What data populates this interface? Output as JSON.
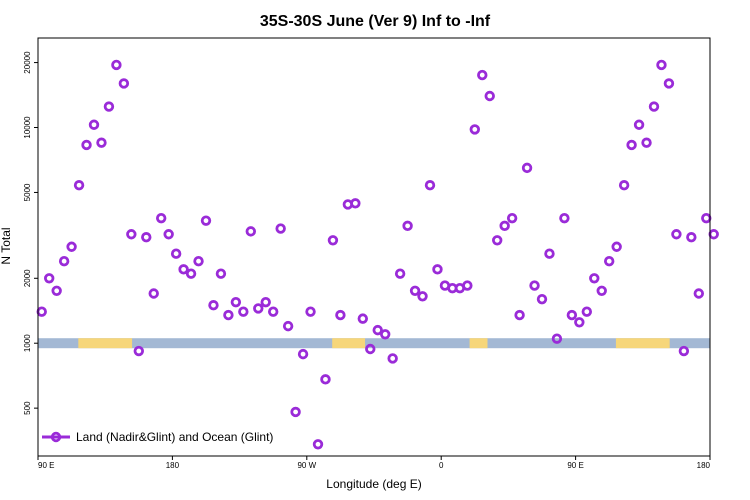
{
  "chart_data": {
    "type": "scatter",
    "title": "35S-30S June (Ver 9)   Inf to -Inf",
    "xlabel": "Longitude (deg E)",
    "ylabel": "N Total",
    "y_scale": "log",
    "ylim": [
      300,
      26000
    ],
    "xlim": [
      0,
      450
    ],
    "x_ticks": [
      {
        "value": 0,
        "label": "90 E"
      },
      {
        "value": 90,
        "label": "180"
      },
      {
        "value": 180,
        "label": "90 W"
      },
      {
        "value": 270,
        "label": "0"
      },
      {
        "value": 360,
        "label": "90 E"
      },
      {
        "value": 450,
        "label": "180"
      }
    ],
    "y_ticks": [
      {
        "value": 500,
        "label": "500"
      },
      {
        "value": 1000,
        "label": "1000"
      },
      {
        "value": 2000,
        "label": "2000"
      },
      {
        "value": 5000,
        "label": "5000"
      },
      {
        "value": 10000,
        "label": "10000"
      },
      {
        "value": 20000,
        "label": "20000"
      }
    ],
    "legend": {
      "label": "Land (Nadir&Glint) and Ocean (Glint)",
      "position": "bottom-left"
    },
    "colors": {
      "series": "#9a2bd8",
      "ocean": "#a3b8d4",
      "land": "#f6d67a"
    },
    "land_strip": {
      "y_value": 1000,
      "land_intervals": [
        [
          27,
          63
        ],
        [
          197,
          219
        ],
        [
          289,
          301
        ],
        [
          387,
          423
        ]
      ]
    },
    "series": [
      {
        "name": "Land (Nadir&Glint) and Ocean (Glint)",
        "points": [
          [
            2.5,
            1400
          ],
          [
            7.5,
            2000
          ],
          [
            12.5,
            1750
          ],
          [
            17.5,
            2400
          ],
          [
            22.5,
            2800
          ],
          [
            27.5,
            5400
          ],
          [
            32.5,
            8300
          ],
          [
            37.5,
            10300
          ],
          [
            42.5,
            8500
          ],
          [
            47.5,
            12500
          ],
          [
            52.5,
            19500
          ],
          [
            57.5,
            16000
          ],
          [
            62.5,
            3200
          ],
          [
            67.5,
            920
          ],
          [
            72.5,
            3100
          ],
          [
            77.5,
            1700
          ],
          [
            82.5,
            3800
          ],
          [
            87.5,
            3200
          ],
          [
            92.5,
            2600
          ],
          [
            97.5,
            2200
          ],
          [
            102.5,
            2100
          ],
          [
            107.5,
            2400
          ],
          [
            112.5,
            3700
          ],
          [
            117.5,
            1500
          ],
          [
            122.5,
            2100
          ],
          [
            127.5,
            1350
          ],
          [
            132.5,
            1550
          ],
          [
            137.5,
            1400
          ],
          [
            142.5,
            3300
          ],
          [
            147.5,
            1450
          ],
          [
            152.5,
            1550
          ],
          [
            157.5,
            1400
          ],
          [
            162.5,
            3400
          ],
          [
            167.5,
            1200
          ],
          [
            172.5,
            480
          ],
          [
            177.5,
            890
          ],
          [
            182.5,
            1400
          ],
          [
            187.5,
            340
          ],
          [
            192.5,
            680
          ],
          [
            197.5,
            3000
          ],
          [
            202.5,
            1350
          ],
          [
            207.5,
            4400
          ],
          [
            212.5,
            4450
          ],
          [
            217.5,
            1300
          ],
          [
            222.5,
            940
          ],
          [
            227.5,
            1150
          ],
          [
            232.5,
            1100
          ],
          [
            237.5,
            850
          ],
          [
            242.5,
            2100
          ],
          [
            247.5,
            3500
          ],
          [
            252.5,
            1750
          ],
          [
            257.5,
            1650
          ],
          [
            262.5,
            5400
          ],
          [
            267.5,
            2200
          ],
          [
            272.5,
            1850
          ],
          [
            277.5,
            1800
          ],
          [
            282.5,
            1800
          ],
          [
            287.5,
            1850
          ],
          [
            292.5,
            9800
          ],
          [
            297.5,
            17500
          ],
          [
            302.5,
            14000
          ],
          [
            307.5,
            3000
          ],
          [
            312.5,
            3500
          ],
          [
            317.5,
            3800
          ],
          [
            322.5,
            1350
          ],
          [
            327.5,
            6500
          ],
          [
            332.5,
            1850
          ],
          [
            337.5,
            1600
          ],
          [
            342.5,
            2600
          ],
          [
            347.5,
            1050
          ],
          [
            352.5,
            3800
          ],
          [
            357.5,
            1350
          ],
          [
            362.5,
            1250
          ],
          [
            367.5,
            1400
          ],
          [
            372.5,
            2000
          ],
          [
            377.5,
            1750
          ],
          [
            382.5,
            2400
          ],
          [
            387.5,
            2800
          ],
          [
            392.5,
            5400
          ],
          [
            397.5,
            8300
          ],
          [
            402.5,
            10300
          ],
          [
            407.5,
            8500
          ],
          [
            412.5,
            12500
          ],
          [
            417.5,
            19500
          ],
          [
            422.5,
            16000
          ],
          [
            427.5,
            3200
          ],
          [
            432.5,
            920
          ],
          [
            437.5,
            3100
          ],
          [
            442.5,
            1700
          ],
          [
            447.5,
            3800
          ],
          [
            452.5,
            3200
          ]
        ]
      }
    ]
  }
}
